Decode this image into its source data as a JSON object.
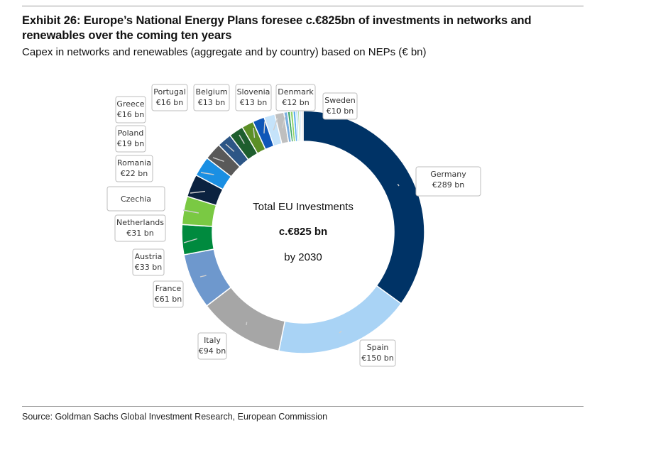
{
  "title": "Exhibit 26: Europe’s National Energy Plans foresee c.€825bn of investments in networks and renewables over the coming ten years",
  "subtitle": "Capex in networks and renewables (aggregate and by country) based on NEPs (€ bn)",
  "source": "Source: Goldman Sachs Global Investment Research, European Commission",
  "chart_data": {
    "type": "pie",
    "variant": "donut",
    "center_text": [
      "Total EU Investments",
      "c.€825 bn",
      "by 2030"
    ],
    "total": 825,
    "slices": [
      {
        "name": "Germany",
        "value": 289,
        "label": "€289 bn",
        "color": "#003366"
      },
      {
        "name": "Spain",
        "value": 150,
        "label": "€150 bn",
        "color": "#a9d3f5"
      },
      {
        "name": "Italy",
        "value": 94,
        "label": "€94 bn",
        "color": "#a6a6a6"
      },
      {
        "name": "France",
        "value": 61,
        "label": "€61 bn",
        "color": "#6e98cd"
      },
      {
        "name": "Austria",
        "value": 33,
        "label": "€33 bn",
        "color": "#008a3e"
      },
      {
        "name": "Netherlands",
        "value": 31,
        "label": "€31 bn",
        "color": "#7ac943"
      },
      {
        "name": "Czechia",
        "value": 25,
        "label": "",
        "color": "#0b2240"
      },
      {
        "name": "Romania",
        "value": 22,
        "label": "€22 bn",
        "color": "#1a8fe3"
      },
      {
        "name": "Poland",
        "value": 19,
        "label": "€19 bn",
        "color": "#595959"
      },
      {
        "name": "Greece",
        "value": 16,
        "label": "€16 bn",
        "color": "#2d5686"
      },
      {
        "name": "Portugal",
        "value": 16,
        "label": "€16 bn",
        "color": "#1e5e2e"
      },
      {
        "name": "Belgium",
        "value": 13,
        "label": "€13 bn",
        "color": "#5c8f26"
      },
      {
        "name": "Slovenia",
        "value": 13,
        "label": "€13 bn",
        "color": "#0f57b8"
      },
      {
        "name": "Denmark",
        "value": 12,
        "label": "€12 bn",
        "color": "#c5e3fa"
      },
      {
        "name": "Sweden",
        "value": 10,
        "label": "€10 bn",
        "color": "#bfbfbf"
      },
      {
        "name": "",
        "value": 4,
        "label": "",
        "color": "#7aaee0"
      },
      {
        "name": "",
        "value": 3,
        "label": "",
        "color": "#3fa86a"
      },
      {
        "name": "",
        "value": 3,
        "label": "",
        "color": "#93d46a"
      },
      {
        "name": "",
        "value": 3,
        "label": "",
        "color": "#5fb1ee"
      },
      {
        "name": "",
        "value": 2,
        "label": "",
        "color": "#8ec9f3"
      },
      {
        "name": "",
        "value": 2,
        "label": "",
        "color": "#b0d9a0"
      },
      {
        "name": "",
        "value": 2,
        "label": "",
        "color": "#d0e6f7"
      },
      {
        "name": "",
        "value": 2,
        "label": "",
        "color": "#d9d9d9"
      }
    ]
  }
}
